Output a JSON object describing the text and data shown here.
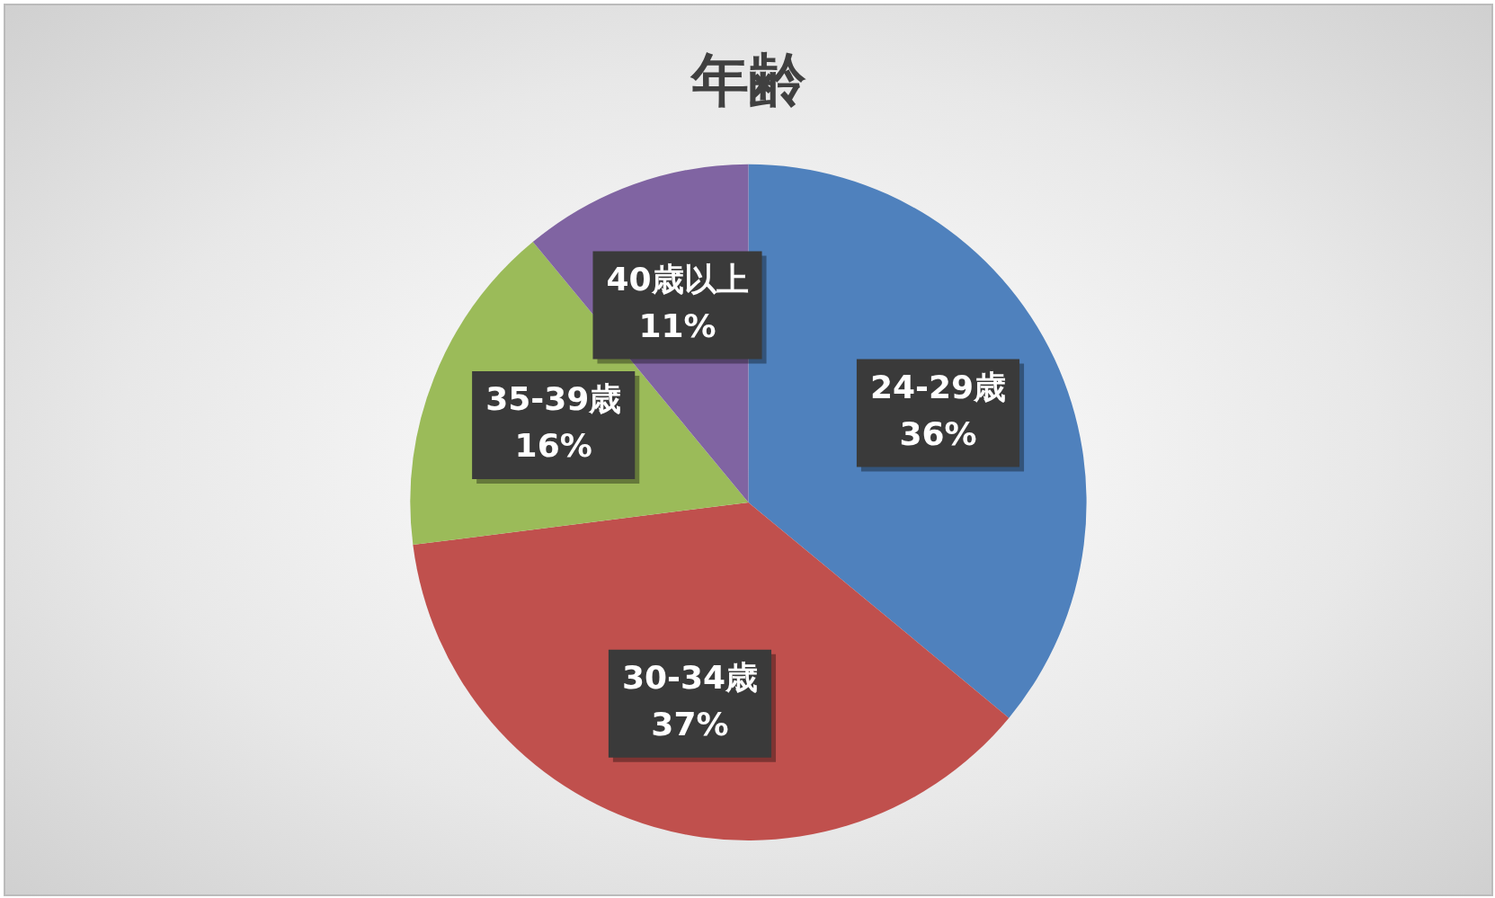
{
  "chart_data": {
    "type": "pie",
    "title": "年齢",
    "categories": [
      "24-29歳",
      "30-34歳",
      "35-39歳",
      "40歳以上"
    ],
    "values": [
      36,
      37,
      16,
      11
    ],
    "value_labels": [
      "36%",
      "37%",
      "16%",
      "11%"
    ],
    "colors": [
      "#4f81bd",
      "#c0504d",
      "#9bbb59",
      "#8064a2"
    ]
  }
}
